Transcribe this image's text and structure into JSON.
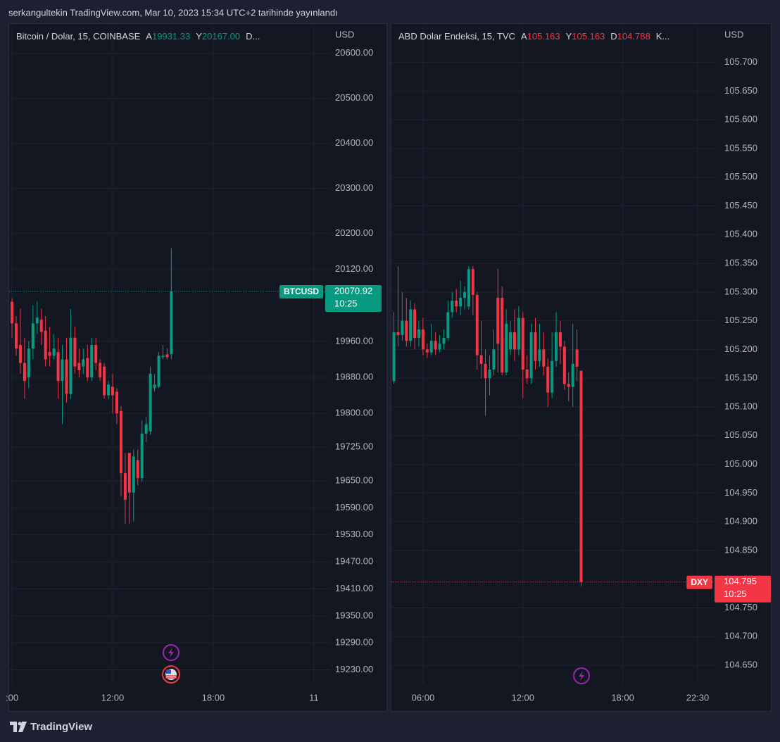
{
  "header": {
    "title": "serkangultekin TradingView.com, Mar 10, 2023 15:34 UTC+2 tarihinde yayınlandı"
  },
  "footer": {
    "brand": "TradingView"
  },
  "chart_data": [
    {
      "type": "candlestick",
      "title": "Bitcoin / Dolar, 15, COINBASE",
      "currency": "USD",
      "legend": [
        {
          "label": "A",
          "value": "19931.33"
        },
        {
          "label": "Y",
          "value": "20167.00"
        },
        {
          "label": "D..."
        }
      ],
      "up_color": "#089981",
      "down_color": "#f23645",
      "grid": true,
      "last_price": {
        "symbol": "BTCUSD",
        "value": 20070.92,
        "countdown": "10:25"
      },
      "xlim": [
        5.83,
        24.97
      ],
      "xticks": [
        {
          "value": 6,
          "label": ":00"
        },
        {
          "value": 12,
          "label": "12:00"
        },
        {
          "value": 18,
          "label": "18:00"
        },
        {
          "value": 24,
          "label": "11"
        }
      ],
      "ylim": [
        19198,
        20659
      ],
      "yticks": [
        {
          "value": 20600,
          "label": "20600.00"
        },
        {
          "value": 20500,
          "label": "20500.00"
        },
        {
          "value": 20400,
          "label": "20400.00"
        },
        {
          "value": 20300,
          "label": "20300.00"
        },
        {
          "value": 20200,
          "label": "20200.00"
        },
        {
          "value": 20120,
          "label": "20120.00"
        },
        {
          "value": 19960,
          "label": "19960.00"
        },
        {
          "value": 19880,
          "label": "19880.00"
        },
        {
          "value": 19800,
          "label": "19800.00"
        },
        {
          "value": 19725,
          "label": "19725.00"
        },
        {
          "value": 19650,
          "label": "19650.00"
        },
        {
          "value": 19590,
          "label": "19590.00"
        },
        {
          "value": 19530,
          "label": "19530.00"
        },
        {
          "value": 19470,
          "label": "19470.00"
        },
        {
          "value": 19410,
          "label": "19410.00"
        },
        {
          "value": 19350,
          "label": "19350.00"
        },
        {
          "value": 19290,
          "label": "19290.00"
        },
        {
          "value": 19230,
          "label": "19230.00"
        }
      ],
      "x": [
        6,
        6.25,
        6.5,
        6.75,
        7,
        7.25,
        7.5,
        7.75,
        8,
        8.25,
        8.5,
        8.75,
        9,
        9.25,
        9.5,
        9.75,
        10,
        10.25,
        10.5,
        10.75,
        11,
        11.25,
        11.5,
        11.75,
        12,
        12.25,
        12.5,
        12.75,
        13,
        13.25,
        13.5,
        13.75,
        14,
        14.25,
        14.5,
        14.75,
        15,
        15.25,
        15.5
      ],
      "open": [
        20048,
        20000,
        19952,
        19912,
        19880,
        19944,
        20000,
        20008,
        19984,
        19936,
        19928,
        19936,
        19872,
        19920,
        19843,
        19968,
        19912,
        19904,
        19923,
        19880,
        19952,
        19912,
        19904,
        19840,
        19859,
        19848,
        19805,
        19667,
        19712,
        19624,
        19696,
        19656,
        19755,
        19760,
        19856,
        19859,
        19925,
        19931,
        19931.33
      ],
      "high": [
        20056,
        20016,
        20032,
        19968,
        19960,
        20040,
        20048,
        20032,
        20016,
        19992,
        19976,
        19968,
        19952,
        19968,
        20032,
        19992,
        19944,
        19944,
        19952,
        19968,
        19968,
        19920,
        19912,
        19872,
        19888,
        19856,
        19816,
        19712,
        19712,
        19720,
        19720,
        19784,
        19792,
        19904,
        19888,
        19936,
        19952,
        19944,
        20167
      ],
      "low": [
        19968,
        19928,
        19888,
        19832,
        19856,
        19920,
        19976,
        19952,
        19904,
        19904,
        19920,
        19832,
        19776,
        19824,
        19832,
        19888,
        19880,
        19888,
        19872,
        19872,
        19896,
        19872,
        19832,
        19832,
        19800,
        19776,
        19616,
        19555,
        19555,
        19560,
        19640,
        19648,
        19736,
        19752,
        19848,
        19856,
        19920,
        19920,
        19920
      ],
      "close": [
        20000,
        19944,
        19912,
        19872,
        19944,
        20000,
        20013,
        19981,
        19920,
        19928,
        19944,
        19872,
        19920,
        19843,
        19968,
        19904,
        19896,
        19920,
        19880,
        19952,
        19912,
        19880,
        19840,
        19864,
        19840,
        19800,
        19667,
        19608,
        19624,
        19704,
        19656,
        19755,
        19776,
        19888,
        19864,
        19928,
        19928,
        19925,
        20070.92
      ]
    },
    {
      "type": "candlestick",
      "title": "ABD Dolar Endeksi, 15, TVC",
      "currency": "USD",
      "legend": [
        {
          "label": "A",
          "value": "105.163"
        },
        {
          "label": "Y",
          "value": "105.163"
        },
        {
          "label": "D",
          "value": "104.788"
        },
        {
          "label": "K..."
        }
      ],
      "up_color": "#089981",
      "down_color": "#f23645",
      "grid": true,
      "last_price": {
        "symbol": "DXY",
        "value": 104.795,
        "countdown": "10:25"
      },
      "xlim": [
        4.1,
        23.6
      ],
      "xticks": [
        {
          "value": 6,
          "label": "06:00"
        },
        {
          "value": 12,
          "label": "12:00"
        },
        {
          "value": 18,
          "label": "18:00"
        },
        {
          "value": 22.5,
          "label": "22:30"
        }
      ],
      "ylim": [
        104.617,
        105.762
      ],
      "yticks": [
        {
          "value": 105.7,
          "label": "105.700"
        },
        {
          "value": 105.65,
          "label": "105.650"
        },
        {
          "value": 105.6,
          "label": "105.600"
        },
        {
          "value": 105.55,
          "label": "105.550"
        },
        {
          "value": 105.5,
          "label": "105.500"
        },
        {
          "value": 105.45,
          "label": "105.450"
        },
        {
          "value": 105.4,
          "label": "105.400"
        },
        {
          "value": 105.35,
          "label": "105.350"
        },
        {
          "value": 105.3,
          "label": "105.300"
        },
        {
          "value": 105.25,
          "label": "105.250"
        },
        {
          "value": 105.2,
          "label": "105.200"
        },
        {
          "value": 105.15,
          "label": "105.150"
        },
        {
          "value": 105.1,
          "label": "105.100"
        },
        {
          "value": 105.05,
          "label": "105.050"
        },
        {
          "value": 105,
          "label": "105.000"
        },
        {
          "value": 104.95,
          "label": "104.950"
        },
        {
          "value": 104.9,
          "label": "104.900"
        },
        {
          "value": 104.85,
          "label": "104.850"
        },
        {
          "value": 104.75,
          "label": "104.750"
        },
        {
          "value": 104.7,
          "label": "104.700"
        },
        {
          "value": 104.65,
          "label": "104.650"
        }
      ],
      "x": [
        4.25,
        4.5,
        4.75,
        5,
        5.25,
        5.5,
        5.75,
        6,
        6.25,
        6.5,
        6.75,
        7,
        7.25,
        7.5,
        7.75,
        8,
        8.25,
        8.5,
        8.75,
        9,
        9.25,
        9.5,
        9.75,
        10,
        10.25,
        10.5,
        10.75,
        11,
        11.25,
        11.5,
        11.75,
        12,
        12.25,
        12.5,
        12.75,
        13,
        13.25,
        13.5,
        13.75,
        14,
        14.25,
        14.5,
        14.75,
        15,
        15.25,
        15.5
      ],
      "open": [
        105.145,
        105.23,
        105.225,
        105.25,
        105.215,
        105.27,
        105.22,
        105.235,
        105.2,
        105.195,
        105.215,
        105.2,
        105.21,
        105.22,
        105.265,
        105.285,
        105.275,
        105.29,
        105.275,
        105.34,
        105.295,
        105.19,
        105.175,
        105.15,
        105.165,
        105.29,
        105.29,
        105.16,
        105.2,
        105.23,
        105.2,
        105.255,
        105.165,
        105.15,
        105.23,
        105.18,
        105.2,
        105.17,
        105.125,
        105.18,
        105.23,
        105.205,
        105.14,
        105.135,
        105.2,
        105.163
      ],
      "high": [
        105.265,
        105.345,
        105.3,
        105.29,
        105.285,
        105.28,
        105.25,
        105.255,
        105.21,
        105.245,
        105.23,
        105.225,
        105.235,
        105.285,
        105.3,
        105.305,
        105.32,
        105.31,
        105.345,
        105.345,
        105.3,
        105.25,
        105.2,
        105.19,
        105.235,
        105.34,
        105.31,
        105.27,
        105.25,
        105.27,
        105.275,
        105.265,
        105.19,
        105.245,
        105.255,
        105.245,
        105.23,
        105.185,
        105.23,
        105.265,
        105.25,
        105.215,
        105.16,
        105.245,
        105.235,
        105.163
      ],
      "low": [
        105.14,
        105.205,
        105.215,
        105.205,
        105.205,
        105.2,
        105.205,
        105.19,
        105.185,
        105.19,
        105.19,
        105.195,
        105.2,
        105.215,
        105.255,
        105.265,
        105.26,
        105.27,
        105.27,
        105.26,
        105.165,
        105.15,
        105.085,
        105.12,
        105.155,
        105.16,
        105.155,
        105.155,
        105.19,
        105.18,
        105.19,
        105.115,
        105.14,
        105.14,
        105.165,
        105.17,
        105.155,
        105.1,
        105.115,
        105.17,
        105.175,
        105.13,
        105.11,
        105.1,
        105.145,
        104.788
      ],
      "close": [
        105.23,
        105.225,
        105.25,
        105.215,
        105.27,
        105.22,
        105.235,
        105.2,
        105.195,
        105.215,
        105.2,
        105.21,
        105.22,
        105.265,
        105.285,
        105.275,
        105.29,
        105.3,
        105.34,
        105.295,
        105.19,
        105.175,
        105.15,
        105.165,
        105.2,
        105.21,
        105.16,
        105.245,
        105.23,
        105.2,
        105.255,
        105.165,
        105.15,
        105.23,
        105.18,
        105.2,
        105.17,
        105.125,
        105.18,
        105.23,
        105.205,
        105.14,
        105.135,
        105.175,
        105.17,
        104.795
      ]
    }
  ]
}
